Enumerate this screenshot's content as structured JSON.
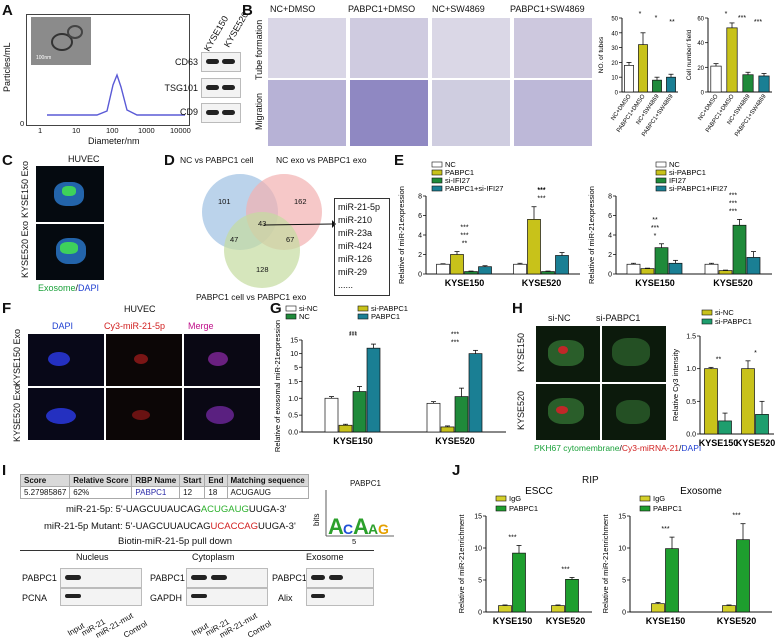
{
  "panels": {
    "A": "A",
    "B": "B",
    "C": "C",
    "D": "D",
    "E": "E",
    "F": "F",
    "G": "G",
    "H": "H",
    "I": "I",
    "J": "J"
  },
  "panelA": {
    "ylabel": "Particles/mL",
    "xlabel": "Diameter/nm",
    "xticks": [
      "1",
      "10",
      "100",
      "1000",
      "10000"
    ],
    "yticks": [
      "0",
      "5",
      "10",
      "15"
    ],
    "scale_text": "100nm",
    "wb_cols": [
      "KYSE150",
      "KYSE520"
    ],
    "wb_rows": [
      "CD63",
      "TSG101",
      "CD9"
    ]
  },
  "panelB": {
    "cols": [
      "NC+DMSO",
      "PABPC1+DMSO",
      "NC+SW4869",
      "PABPC1+SW4869"
    ],
    "rows": [
      "Tube formation",
      "Migration"
    ]
  },
  "panelC": {
    "title": "HUVEC",
    "rows": [
      "KYSE150 Exo",
      "KYSE520 Exo"
    ],
    "legend_green": "Exosome",
    "legend_sep": "/",
    "legend_blue": "DAPI"
  },
  "panelD": {
    "labels": [
      "NC vs PABPC1 cell",
      "NC exo vs PABPC1 exo",
      "PABPC1 cell vs PABPC1 exo"
    ],
    "numbers": [
      "101",
      "162",
      "43",
      "47",
      "67",
      "128"
    ],
    "mirs": [
      "miR-21-5p",
      "miR-210",
      "miR-23a",
      "miR-424",
      "miR-126",
      "miR-29",
      "......"
    ]
  },
  "panelF": {
    "title": "HUVEC",
    "cols": [
      "DAPI",
      "Cy3-miR-21-5p",
      "Merge"
    ],
    "rows": [
      "KYSE150 Exo",
      "KYSE520 Exo"
    ]
  },
  "panelH": {
    "cols": [
      "si-NC",
      "si-PABPC1"
    ],
    "rows": [
      "KYSE150",
      "KYSE520"
    ],
    "caption_green": "PKH67 cytomembrane",
    "caption_sep": "/",
    "caption_red": "Cy3-miRNA-21",
    "caption_sep2": "/",
    "caption_blue": "DAPI"
  },
  "panelI": {
    "table_headers": [
      "Score",
      "Relative Score",
      "RBP Name",
      "Start",
      "End",
      "Matching sequence"
    ],
    "table_row": [
      "5.27985867",
      "62%",
      "PABPC1",
      "12",
      "18",
      "ACUGAUG"
    ],
    "seq1_label": "miR-21-5p: 5'-UAGCUUAUCAG",
    "seq1_mid": "ACUGAUG",
    "seq1_end": "UUGA-3'",
    "seq2_label": "miR-21-5p Mutant: 5'-UAGCUUAUCAG",
    "seq2_mid": "UCACCAG",
    "seq2_end": "UUGA-3'",
    "logo_title": "PABPC1",
    "logo_ylabel": "bits",
    "logo_tick": "5",
    "pulldown_title": "Biotin-miR-21-5p pull down",
    "fractions": [
      "Nucleus",
      "Cytoplasm",
      "Exosome"
    ],
    "blot_rows": [
      [
        "PABPC1",
        "PCNA"
      ],
      [
        "PABPC1",
        "GAPDH"
      ],
      [
        "PABPC1",
        "Alix"
      ]
    ],
    "lanes": [
      "Input",
      "miR-21",
      "miR-21-mut",
      "Control"
    ]
  },
  "panelJ_title": "RIP",
  "colors": {
    "nc": "#ffffff",
    "pabpc1": "#c8c21a",
    "siIFI27": "#1f8a3a",
    "combo": "#1a7f94",
    "bar_green": "#1e9e2e",
    "bar_yellow": "#d4d02a"
  },
  "chart_data": [
    {
      "id": "B1",
      "type": "bar",
      "title": "",
      "xlabel": "",
      "ylabel": "NO. of tubes",
      "categories": [
        "NC+DMSO",
        "PABPC1+DMSO",
        "NC+SW4869",
        "PABPC1+SW4869"
      ],
      "values": [
        18,
        32,
        8,
        10
      ],
      "errors": [
        2,
        8,
        2,
        2
      ],
      "ylim": [
        0,
        50
      ],
      "yticks": [
        "0",
        "10",
        "20",
        "30",
        "40",
        "50"
      ],
      "colors": [
        "#ffffff",
        "#c8c21a",
        "#1f8a3a",
        "#1a7f94"
      ],
      "sig": [
        "*",
        "*",
        "**"
      ]
    },
    {
      "id": "B2",
      "type": "bar",
      "title": "",
      "xlabel": "",
      "ylabel": "Cell number/ field",
      "categories": [
        "NC+DMSO",
        "PABPC1+DMSO",
        "NC+SW4869",
        "PABPC1+SW4869"
      ],
      "values": [
        21,
        52,
        14,
        13
      ],
      "errors": [
        2,
        4,
        2,
        2
      ],
      "ylim": [
        0,
        60
      ],
      "yticks": [
        "0",
        "20",
        "40",
        "60"
      ],
      "colors": [
        "#ffffff",
        "#c8c21a",
        "#1f8a3a",
        "#1a7f94"
      ],
      "sig": [
        "*",
        "***",
        "***"
      ]
    },
    {
      "id": "E1",
      "type": "bar",
      "ylabel": "Relative of miR-21expression",
      "categories": [
        "KYSE150",
        "KYSE520"
      ],
      "ylim": [
        0,
        8
      ],
      "yticks": [
        "0",
        "2",
        "4",
        "6",
        "8"
      ],
      "series": [
        {
          "name": "NC",
          "values": [
            1.0,
            1.0
          ],
          "errors": [
            0.05,
            0.1
          ],
          "color": "#ffffff"
        },
        {
          "name": "PABPC1",
          "values": [
            2.0,
            5.6
          ],
          "errors": [
            0.3,
            1.3
          ],
          "color": "#c8c21a"
        },
        {
          "name": "si-IFI27",
          "values": [
            0.25,
            0.25
          ],
          "errors": [
            0.05,
            0.05
          ],
          "color": "#1f8a3a"
        },
        {
          "name": "PABPC1+si-IFI27",
          "values": [
            0.75,
            1.9
          ],
          "errors": [
            0.1,
            0.3
          ],
          "color": "#1a7f94"
        }
      ],
      "sig": [
        "**",
        "***",
        "***",
        "***",
        "***",
        "***"
      ]
    },
    {
      "id": "E2",
      "type": "bar",
      "ylabel": "Relative of miR-21expression",
      "categories": [
        "KYSE150",
        "KYSE520"
      ],
      "ylim": [
        0,
        8
      ],
      "yticks": [
        "0",
        "2",
        "4",
        "6",
        "8"
      ],
      "series": [
        {
          "name": "NC",
          "values": [
            1.0,
            1.0
          ],
          "errors": [
            0.1,
            0.1
          ],
          "color": "#ffffff"
        },
        {
          "name": "si-PABPC1",
          "values": [
            0.55,
            0.35
          ],
          "errors": [
            0.05,
            0.05
          ],
          "color": "#c8c21a"
        },
        {
          "name": "IFI27",
          "values": [
            2.7,
            5.0
          ],
          "errors": [
            0.4,
            0.6
          ],
          "color": "#1f8a3a"
        },
        {
          "name": "si-PABPC1+IFI27",
          "values": [
            1.1,
            1.7
          ],
          "errors": [
            0.3,
            0.6
          ],
          "color": "#1a7f94"
        }
      ],
      "sig": [
        "*",
        "***",
        "**",
        "***",
        "***",
        "***"
      ]
    },
    {
      "id": "G",
      "type": "bar",
      "ylabel": "Relative of exosomal miR-21expression",
      "categories": [
        "KYSE150",
        "KYSE520"
      ],
      "ylim": [
        0,
        15
      ],
      "yticks": [
        "0.0",
        "0.5",
        "1.0",
        "1.5",
        "5",
        "10",
        "15"
      ],
      "series": [
        {
          "name": "si-NC",
          "values": [
            1.0,
            0.85
          ],
          "errors": [
            0.05,
            0.05
          ],
          "color": "#ffffff"
        },
        {
          "name": "si-PABPC1",
          "values": [
            0.2,
            0.15
          ],
          "errors": [
            0.03,
            0.03
          ],
          "color": "#c8c21a"
        },
        {
          "name": "NC",
          "values": [
            1.2,
            1.05
          ],
          "errors": [
            0.15,
            0.25
          ],
          "color": "#1f8a3a"
        },
        {
          "name": "PABPC1",
          "values": [
            12,
            10
          ],
          "errors": [
            1.5,
            1.2
          ],
          "color": "#1a7f94"
        }
      ],
      "sig": [
        "***",
        "***",
        "***",
        "***"
      ]
    },
    {
      "id": "H",
      "type": "bar",
      "ylabel": "Relative Cy3 intensity",
      "categories": [
        "KYSE150",
        "KYSE520"
      ],
      "ylim": [
        0,
        1.5
      ],
      "yticks": [
        "0.0",
        "0.5",
        "1.0",
        "1.5"
      ],
      "series": [
        {
          "name": "si-NC",
          "values": [
            1.0,
            1.0
          ],
          "errors": [
            0.02,
            0.12
          ],
          "color": "#c8c21a"
        },
        {
          "name": "si-PABPC1",
          "values": [
            0.2,
            0.3
          ],
          "errors": [
            0.12,
            0.2
          ],
          "color": "#1e9e6e"
        }
      ],
      "sig": [
        "**",
        "*"
      ]
    },
    {
      "id": "J1",
      "type": "bar",
      "title": "ESCC",
      "ylabel": "Relative of miR-21enrichment",
      "categories": [
        "KYSE150",
        "KYSE520"
      ],
      "ylim": [
        0,
        15
      ],
      "yticks": [
        "0",
        "5",
        "10",
        "15"
      ],
      "series": [
        {
          "name": "IgG",
          "values": [
            1.0,
            1.0
          ],
          "errors": [
            0.1,
            0.1
          ],
          "color": "#d4d02a"
        },
        {
          "name": "PABPC1",
          "values": [
            9.2,
            5.1
          ],
          "errors": [
            1.2,
            0.3
          ],
          "color": "#1e9e2e"
        }
      ],
      "sig": [
        "***",
        "***"
      ]
    },
    {
      "id": "J2",
      "type": "bar",
      "title": "Exosome",
      "ylabel": "Relative of miR-21enrichment",
      "categories": [
        "KYSE150",
        "KYSE520"
      ],
      "ylim": [
        0,
        15
      ],
      "yticks": [
        "0",
        "5",
        "10",
        "15"
      ],
      "series": [
        {
          "name": "IgG",
          "values": [
            1.3,
            1.0
          ],
          "errors": [
            0.2,
            0.1
          ],
          "color": "#d4d02a"
        },
        {
          "name": "PABPC1",
          "values": [
            9.9,
            11.3
          ],
          "errors": [
            1.8,
            2.5
          ],
          "color": "#1e9e2e"
        }
      ],
      "sig": [
        "***",
        "***"
      ]
    }
  ]
}
